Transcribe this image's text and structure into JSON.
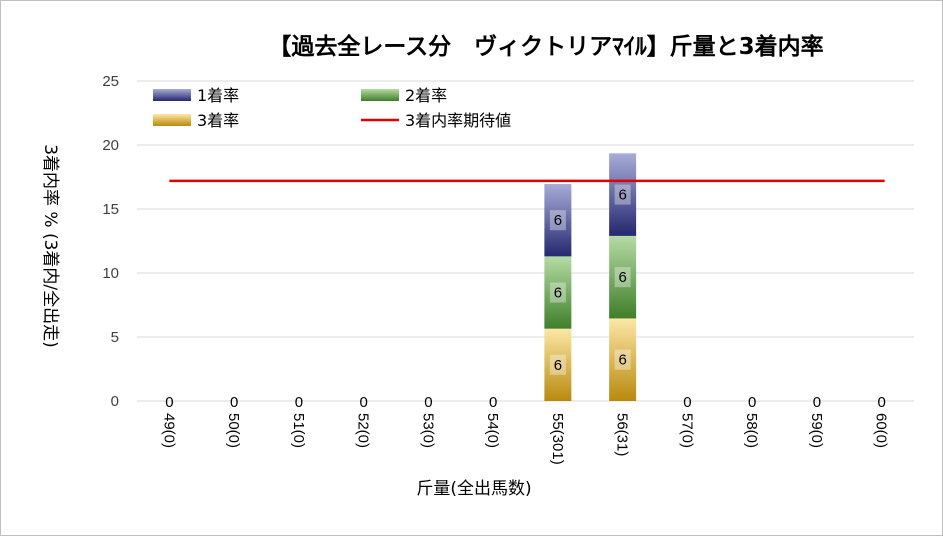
{
  "chart_data": {
    "type": "bar",
    "stacked": true,
    "title": "【過去全レース分　ヴィクトリアﾏｲﾙ】斤量と3着内率",
    "xlabel": "斤量(全出馬数)",
    "ylabel": "3着内率 %   (3着内/全出走)",
    "ylim": [
      0,
      25
    ],
    "yticks": [
      0,
      5,
      10,
      15,
      20,
      25
    ],
    "grid": true,
    "legend_position": "top",
    "categories": [
      "49(0)",
      "50(0)",
      "51(0)",
      "52(0)",
      "53(0)",
      "54(0)",
      "55(301)",
      "56(31)",
      "57(0)",
      "58(0)",
      "59(0)",
      "60(0)"
    ],
    "series": [
      {
        "name": "3着率",
        "color": "#c9a227",
        "values": [
          0,
          0,
          0,
          0,
          0,
          0,
          5.65,
          6.45,
          0,
          0,
          0,
          0
        ],
        "labels": [
          "",
          "",
          "",
          "",
          "",
          "",
          "6",
          "6",
          "",
          "",
          "",
          ""
        ]
      },
      {
        "name": "2着率",
        "color": "#5a9a3e",
        "values": [
          0,
          0,
          0,
          0,
          0,
          0,
          5.65,
          6.45,
          0,
          0,
          0,
          0
        ],
        "labels": [
          "",
          "",
          "",
          "",
          "",
          "",
          "6",
          "6",
          "",
          "",
          "",
          ""
        ]
      },
      {
        "name": "1着率",
        "color": "#3a3f8f",
        "values": [
          0,
          0,
          0,
          0,
          0,
          0,
          5.65,
          6.45,
          0,
          0,
          0,
          0
        ],
        "labels": [
          "",
          "",
          "",
          "",
          "",
          "",
          "6",
          "6",
          "",
          "",
          "",
          ""
        ]
      }
    ],
    "total_labels": [
      "0",
      "0",
      "0",
      "0",
      "0",
      "0",
      "",
      "",
      "0",
      "0",
      "0",
      "0"
    ],
    "reference_line": {
      "name": "3着内率期待値",
      "value": 17.2,
      "color": "#e00000"
    },
    "legend_order": [
      "1着率",
      "2着率",
      "3着率",
      "3着内率期待値"
    ]
  }
}
